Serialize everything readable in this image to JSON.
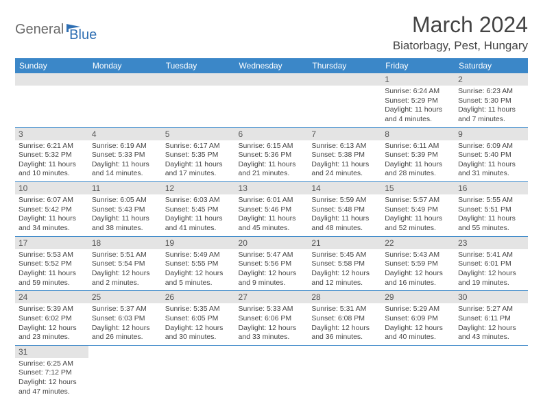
{
  "logo": {
    "main": "General",
    "sub": "Blue"
  },
  "title": "March 2024",
  "location": "Biatorbagy, Pest, Hungary",
  "colors": {
    "header_bg": "#3b87c8",
    "daynum_bg": "#e4e4e4",
    "row_border": "#3b87c8",
    "logo_gray": "#6a6a6a",
    "logo_blue": "#2f6fb3"
  },
  "weekdays": [
    "Sunday",
    "Monday",
    "Tuesday",
    "Wednesday",
    "Thursday",
    "Friday",
    "Saturday"
  ],
  "weeks": [
    [
      {
        "blank": true
      },
      {
        "blank": true
      },
      {
        "blank": true
      },
      {
        "blank": true
      },
      {
        "blank": true
      },
      {
        "day": "1",
        "sunrise": "Sunrise: 6:24 AM",
        "sunset": "Sunset: 5:29 PM",
        "daylight": "Daylight: 11 hours and 4 minutes."
      },
      {
        "day": "2",
        "sunrise": "Sunrise: 6:23 AM",
        "sunset": "Sunset: 5:30 PM",
        "daylight": "Daylight: 11 hours and 7 minutes."
      }
    ],
    [
      {
        "day": "3",
        "sunrise": "Sunrise: 6:21 AM",
        "sunset": "Sunset: 5:32 PM",
        "daylight": "Daylight: 11 hours and 10 minutes."
      },
      {
        "day": "4",
        "sunrise": "Sunrise: 6:19 AM",
        "sunset": "Sunset: 5:33 PM",
        "daylight": "Daylight: 11 hours and 14 minutes."
      },
      {
        "day": "5",
        "sunrise": "Sunrise: 6:17 AM",
        "sunset": "Sunset: 5:35 PM",
        "daylight": "Daylight: 11 hours and 17 minutes."
      },
      {
        "day": "6",
        "sunrise": "Sunrise: 6:15 AM",
        "sunset": "Sunset: 5:36 PM",
        "daylight": "Daylight: 11 hours and 21 minutes."
      },
      {
        "day": "7",
        "sunrise": "Sunrise: 6:13 AM",
        "sunset": "Sunset: 5:38 PM",
        "daylight": "Daylight: 11 hours and 24 minutes."
      },
      {
        "day": "8",
        "sunrise": "Sunrise: 6:11 AM",
        "sunset": "Sunset: 5:39 PM",
        "daylight": "Daylight: 11 hours and 28 minutes."
      },
      {
        "day": "9",
        "sunrise": "Sunrise: 6:09 AM",
        "sunset": "Sunset: 5:40 PM",
        "daylight": "Daylight: 11 hours and 31 minutes."
      }
    ],
    [
      {
        "day": "10",
        "sunrise": "Sunrise: 6:07 AM",
        "sunset": "Sunset: 5:42 PM",
        "daylight": "Daylight: 11 hours and 34 minutes."
      },
      {
        "day": "11",
        "sunrise": "Sunrise: 6:05 AM",
        "sunset": "Sunset: 5:43 PM",
        "daylight": "Daylight: 11 hours and 38 minutes."
      },
      {
        "day": "12",
        "sunrise": "Sunrise: 6:03 AM",
        "sunset": "Sunset: 5:45 PM",
        "daylight": "Daylight: 11 hours and 41 minutes."
      },
      {
        "day": "13",
        "sunrise": "Sunrise: 6:01 AM",
        "sunset": "Sunset: 5:46 PM",
        "daylight": "Daylight: 11 hours and 45 minutes."
      },
      {
        "day": "14",
        "sunrise": "Sunrise: 5:59 AM",
        "sunset": "Sunset: 5:48 PM",
        "daylight": "Daylight: 11 hours and 48 minutes."
      },
      {
        "day": "15",
        "sunrise": "Sunrise: 5:57 AM",
        "sunset": "Sunset: 5:49 PM",
        "daylight": "Daylight: 11 hours and 52 minutes."
      },
      {
        "day": "16",
        "sunrise": "Sunrise: 5:55 AM",
        "sunset": "Sunset: 5:51 PM",
        "daylight": "Daylight: 11 hours and 55 minutes."
      }
    ],
    [
      {
        "day": "17",
        "sunrise": "Sunrise: 5:53 AM",
        "sunset": "Sunset: 5:52 PM",
        "daylight": "Daylight: 11 hours and 59 minutes."
      },
      {
        "day": "18",
        "sunrise": "Sunrise: 5:51 AM",
        "sunset": "Sunset: 5:54 PM",
        "daylight": "Daylight: 12 hours and 2 minutes."
      },
      {
        "day": "19",
        "sunrise": "Sunrise: 5:49 AM",
        "sunset": "Sunset: 5:55 PM",
        "daylight": "Daylight: 12 hours and 5 minutes."
      },
      {
        "day": "20",
        "sunrise": "Sunrise: 5:47 AM",
        "sunset": "Sunset: 5:56 PM",
        "daylight": "Daylight: 12 hours and 9 minutes."
      },
      {
        "day": "21",
        "sunrise": "Sunrise: 5:45 AM",
        "sunset": "Sunset: 5:58 PM",
        "daylight": "Daylight: 12 hours and 12 minutes."
      },
      {
        "day": "22",
        "sunrise": "Sunrise: 5:43 AM",
        "sunset": "Sunset: 5:59 PM",
        "daylight": "Daylight: 12 hours and 16 minutes."
      },
      {
        "day": "23",
        "sunrise": "Sunrise: 5:41 AM",
        "sunset": "Sunset: 6:01 PM",
        "daylight": "Daylight: 12 hours and 19 minutes."
      }
    ],
    [
      {
        "day": "24",
        "sunrise": "Sunrise: 5:39 AM",
        "sunset": "Sunset: 6:02 PM",
        "daylight": "Daylight: 12 hours and 23 minutes."
      },
      {
        "day": "25",
        "sunrise": "Sunrise: 5:37 AM",
        "sunset": "Sunset: 6:03 PM",
        "daylight": "Daylight: 12 hours and 26 minutes."
      },
      {
        "day": "26",
        "sunrise": "Sunrise: 5:35 AM",
        "sunset": "Sunset: 6:05 PM",
        "daylight": "Daylight: 12 hours and 30 minutes."
      },
      {
        "day": "27",
        "sunrise": "Sunrise: 5:33 AM",
        "sunset": "Sunset: 6:06 PM",
        "daylight": "Daylight: 12 hours and 33 minutes."
      },
      {
        "day": "28",
        "sunrise": "Sunrise: 5:31 AM",
        "sunset": "Sunset: 6:08 PM",
        "daylight": "Daylight: 12 hours and 36 minutes."
      },
      {
        "day": "29",
        "sunrise": "Sunrise: 5:29 AM",
        "sunset": "Sunset: 6:09 PM",
        "daylight": "Daylight: 12 hours and 40 minutes."
      },
      {
        "day": "30",
        "sunrise": "Sunrise: 5:27 AM",
        "sunset": "Sunset: 6:11 PM",
        "daylight": "Daylight: 12 hours and 43 minutes."
      }
    ],
    [
      {
        "day": "31",
        "sunrise": "Sunrise: 6:25 AM",
        "sunset": "Sunset: 7:12 PM",
        "daylight": "Daylight: 12 hours and 47 minutes."
      },
      {
        "blank": true
      },
      {
        "blank": true
      },
      {
        "blank": true
      },
      {
        "blank": true
      },
      {
        "blank": true
      },
      {
        "blank": true
      }
    ]
  ]
}
